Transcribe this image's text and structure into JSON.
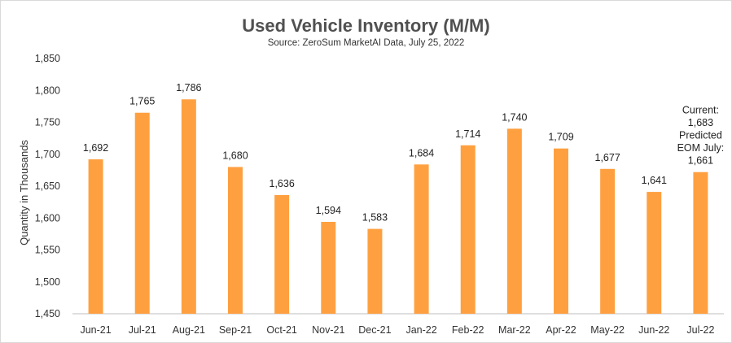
{
  "chart_data": {
    "type": "bar",
    "title": "Used Vehicle Inventory (M/M)",
    "subtitle": "Source: ZeroSum MarketAI Data, July 25, 2022",
    "ylabel": "Quantity in Thousands",
    "xlabel": "",
    "categories": [
      "Jun-21",
      "Jul-21",
      "Aug-21",
      "Sep-21",
      "Oct-21",
      "Nov-21",
      "Dec-21",
      "Jan-22",
      "Feb-22",
      "Mar-22",
      "Apr-22",
      "May-22",
      "Jun-22",
      "Jul-22"
    ],
    "values": [
      1692,
      1765,
      1786,
      1680,
      1636,
      1594,
      1583,
      1684,
      1714,
      1740,
      1709,
      1677,
      1641,
      1672
    ],
    "data_labels": [
      "1,692",
      "1,765",
      "1,786",
      "1,680",
      "1,636",
      "1,594",
      "1,583",
      "1,684",
      "1,714",
      "1,740",
      "1,709",
      "1,677",
      "1,641",
      "Current:\n1,683\nPredicted\nEOM July:\n1,661"
    ],
    "ylim": [
      1450,
      1850
    ],
    "yticks": [
      1450,
      1500,
      1550,
      1600,
      1650,
      1700,
      1750,
      1800,
      1850
    ],
    "ytick_labels": [
      "1,450",
      "1,500",
      "1,550",
      "1,600",
      "1,650",
      "1,700",
      "1,750",
      "1,800",
      "1,850"
    ],
    "bar_color": "#FFA040",
    "grid": false,
    "legend": "none"
  }
}
